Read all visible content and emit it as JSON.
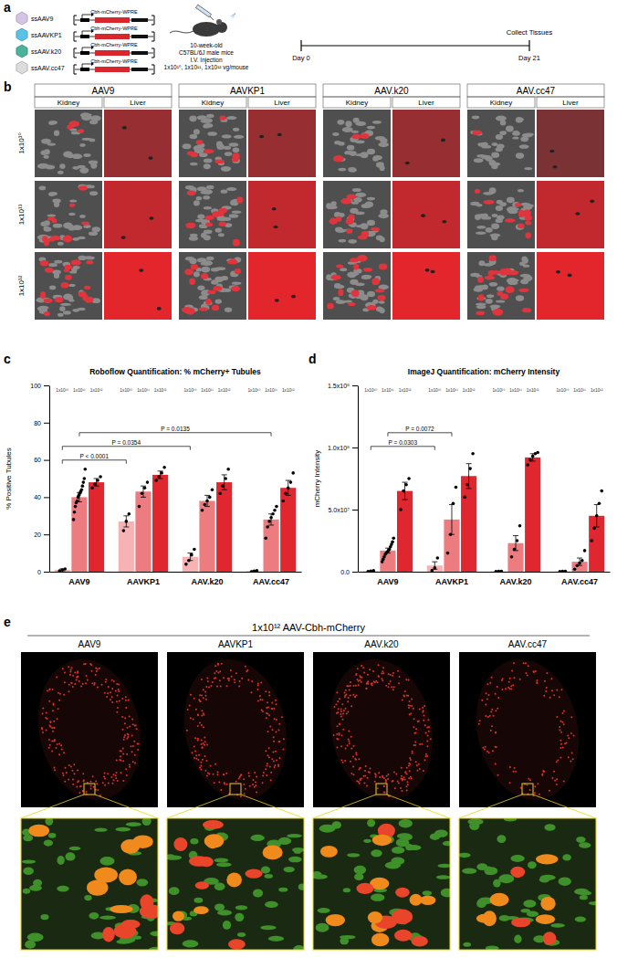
{
  "panel_labels": [
    "a",
    "b",
    "c",
    "d",
    "e"
  ],
  "schematic": {
    "vectors": [
      {
        "name": "ssAAV9",
        "color": "#d6c4e6"
      },
      {
        "name": "ssAAVKP1",
        "color": "#59c2e6"
      },
      {
        "name": "ssAAV.k20",
        "color": "#4bb39a"
      },
      {
        "name": "ssAAV.cc47",
        "color": "#dcdcdc"
      }
    ],
    "construct": "Cbh-mCherry-WPRE",
    "sex": "♂",
    "mouse": [
      "10-week-old",
      "C57BL/6J male mice",
      "I.V. Injection",
      "1x10¹⁰, 1x10¹¹, 1x10¹² vg/mouse"
    ],
    "timeline": {
      "start": "Day 0",
      "end": "Day 21",
      "event": "Collect Tissues"
    }
  },
  "micrographs": {
    "capsids": [
      "AAV9",
      "AAVKP1",
      "AAV.k20",
      "AAV.cc47"
    ],
    "tissues": [
      "Kidney",
      "Liver"
    ],
    "doses": [
      "1x10¹⁰",
      "1x10¹¹",
      "1x10¹²"
    ]
  },
  "sections": {
    "title": "1x10¹² AAV-Cbh-mCherry",
    "capsids": [
      "AAV9",
      "AAVKP1",
      "AAV.k20",
      "AAV.cc47"
    ]
  },
  "chart_data": [
    {
      "type": "bar",
      "title": "Roboflow Quantification: % mCherry+ Tubules",
      "ylabel": "% Positive Tubules",
      "categories": [
        "AAV9",
        "AAVKP1",
        "AAV.k20",
        "AAV.cc47"
      ],
      "series": [
        {
          "name": "1x10¹⁰",
          "color": "#f7b3b3",
          "values": [
            1,
            27,
            8,
            0.3
          ],
          "errors": [
            0.5,
            3,
            2,
            0.2
          ],
          "points": [
            [
              0.5,
              1,
              1.5
            ],
            [
              22,
              27,
              31
            ],
            [
              4,
              6,
              9,
              12
            ],
            [
              0,
              0.3,
              0.6
            ]
          ]
        },
        {
          "name": "1x10¹¹",
          "color": "#ec7c80",
          "values": [
            40,
            43,
            38,
            28
          ],
          "errors": [
            2.5,
            3,
            3,
            3
          ],
          "points": [
            [
              28,
              32,
              35,
              37,
              38,
              40,
              41,
              42,
              43,
              44,
              46,
              48,
              50,
              55
            ],
            [
              35,
              42,
              45,
              48
            ],
            [
              33,
              36,
              38,
              40,
              44
            ],
            [
              18,
              24,
              27,
              29,
              31,
              33,
              35
            ]
          ]
        },
        {
          "name": "1x10¹²",
          "color": "#e0262e",
          "values": [
            48,
            52,
            48,
            45
          ],
          "errors": [
            2,
            2,
            4,
            4
          ],
          "points": [
            [
              45,
              47,
              49,
              51
            ],
            [
              49,
              51,
              53,
              56
            ],
            [
              42,
              46,
              50,
              55
            ],
            [
              38,
              42,
              45,
              48,
              53
            ]
          ]
        }
      ],
      "ylim": [
        0,
        100
      ],
      "yticks": [
        0,
        20,
        40,
        60,
        80,
        100
      ],
      "annotations": [
        {
          "text": "P < 0.0001",
          "between": [
            [
              "AAV9",
              "1x10¹⁰"
            ],
            [
              "AAVKP1",
              "1x10¹⁰"
            ]
          ]
        },
        {
          "text": "P = 0.0354",
          "between": [
            [
              "AAV9",
              "1x10¹⁰"
            ],
            [
              "AAV.k20",
              "1x10¹⁰"
            ]
          ]
        },
        {
          "text": "P = 0.0135",
          "between": [
            [
              "AAV9",
              "1x10¹¹"
            ],
            [
              "AAV.cc47",
              "1x10¹¹"
            ]
          ]
        }
      ]
    },
    {
      "type": "bar",
      "title": "ImageJ Quantification: mCherry Intensity",
      "ylabel": "mCherry Intensity",
      "categories": [
        "AAV9",
        "AAVKP1",
        "AAV.k20",
        "AAV.cc47"
      ],
      "series": [
        {
          "name": "1x10¹⁰",
          "color": "#f7b3b3",
          "values": [
            500000,
            5000000,
            300000,
            300000
          ],
          "errors": [
            200000,
            3000000,
            100000,
            100000
          ],
          "points": [
            [
              200000,
              500000,
              800000
            ],
            [
              1000000,
              3000000,
              11000000
            ],
            [
              200000,
              300000,
              400000
            ],
            [
              200000,
              300000,
              400000
            ]
          ]
        },
        {
          "name": "1x10¹¹",
          "color": "#ec7c80",
          "values": [
            17000000,
            42000000,
            23000000,
            8000000
          ],
          "errors": [
            2000000,
            12000000,
            6000000,
            3000000
          ],
          "points": [
            [
              8000000,
              10000000,
              12000000,
              14000000,
              15000000,
              16000000,
              17000000,
              18000000,
              20000000,
              22000000,
              24000000,
              27000000
            ],
            [
              15000000,
              30000000,
              55000000,
              68000000
            ],
            [
              12000000,
              18000000,
              25000000,
              37000000
            ],
            [
              2000000,
              5000000,
              7000000,
              9000000,
              17000000
            ]
          ]
        },
        {
          "name": "1x10¹²",
          "color": "#e0262e",
          "values": [
            65000000,
            77000000,
            92000000,
            45000000
          ],
          "errors": [
            7000000,
            10000000,
            3000000,
            9000000
          ],
          "points": [
            [
              50000000,
              65000000,
              70000000,
              75000000
            ],
            [
              60000000,
              70000000,
              83000000,
              95000000
            ],
            [
              86000000,
              90000000,
              93000000,
              95000000,
              96000000
            ],
            [
              25000000,
              35000000,
              45000000,
              55000000,
              65000000
            ]
          ]
        }
      ],
      "ylim": [
        0,
        150000000
      ],
      "yticks": [
        {
          "value": 0,
          "label": "0.0"
        },
        {
          "value": 50000000,
          "label": "5.0x10⁷"
        },
        {
          "value": 100000000,
          "label": "1.0x10⁸"
        },
        {
          "value": 150000000,
          "label": "1.5x10⁸"
        }
      ],
      "annotations": [
        {
          "text": "P = 0.0303",
          "between": [
            [
              "AAV9",
              "1x10¹⁰"
            ],
            [
              "AAVKP1",
              "1x10¹⁰"
            ]
          ]
        },
        {
          "text": "P = 0.0072",
          "between": [
            [
              "AAV9",
              "1x10¹¹"
            ],
            [
              "AAVKP1",
              "1x10¹¹"
            ]
          ]
        }
      ]
    }
  ]
}
